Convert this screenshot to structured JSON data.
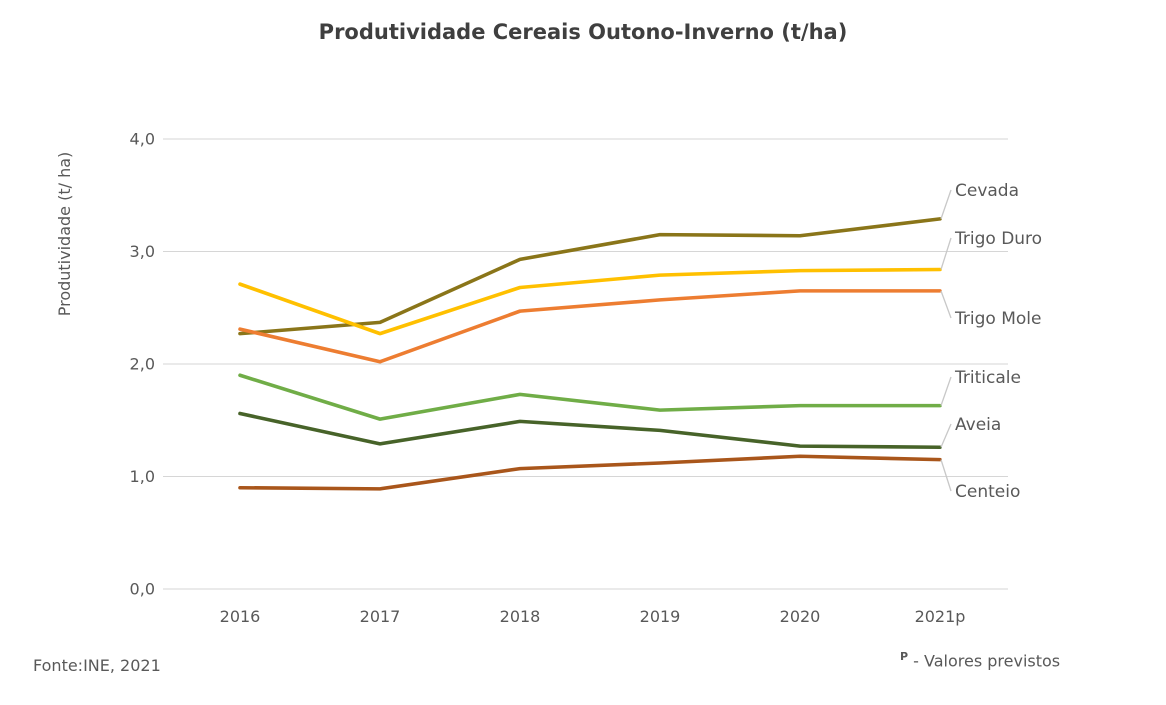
{
  "title": "Produtividade Cereais Outono-Inverno (t/ha)",
  "footer": {
    "source": "Fonte:INE, 2021",
    "note_sup": "P",
    "note_text": "- Valores previstos"
  },
  "colors": {
    "grid": "#d6d6d6",
    "leader": "#c8c8c8",
    "text": "#595959",
    "title": "#3f3f3f"
  },
  "chart_data": {
    "type": "line",
    "title": "Produtividade Cereais Outono-Inverno (t/ha)",
    "x": [
      "2016",
      "2017",
      "2018",
      "2019",
      "2020",
      "2021p"
    ],
    "series": [
      {
        "name": "Cevada",
        "color": "#8a7519",
        "values": [
          2.27,
          2.37,
          2.93,
          3.15,
          3.14,
          3.29
        ]
      },
      {
        "name": "Trigo Duro",
        "color": "#ffc000",
        "values": [
          2.71,
          2.27,
          2.68,
          2.79,
          2.83,
          2.84
        ]
      },
      {
        "name": "Trigo Mole",
        "color": "#ed7d31",
        "values": [
          2.31,
          2.02,
          2.47,
          2.57,
          2.65,
          2.65
        ]
      },
      {
        "name": "Triticale",
        "color": "#70ad47",
        "values": [
          1.9,
          1.51,
          1.73,
          1.59,
          1.63,
          1.63
        ]
      },
      {
        "name": "Aveia",
        "color": "#476329",
        "values": [
          1.56,
          1.29,
          1.49,
          1.41,
          1.27,
          1.26
        ]
      },
      {
        "name": "Centeio",
        "color": "#a9561b",
        "values": [
          0.9,
          0.89,
          1.07,
          1.12,
          1.18,
          1.15
        ]
      }
    ],
    "xlabel": "",
    "ylabel": "Produtividade  (t/ ha)",
    "yticks": [
      "0,0",
      "1,0",
      "2,0",
      "3,0",
      "4,0"
    ],
    "ylim": [
      0,
      4
    ],
    "grid": true,
    "legend_position": "right-labels"
  }
}
